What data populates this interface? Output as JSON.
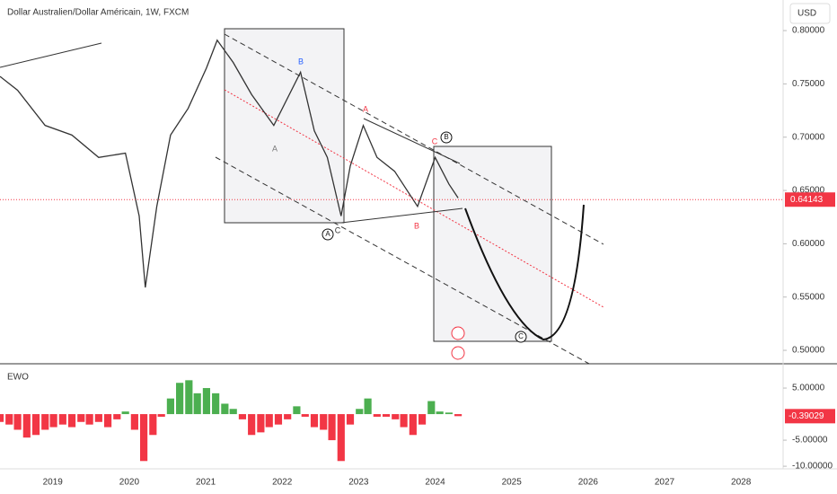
{
  "chart_data": [
    {
      "type": "line",
      "title": "Dollar Australien/Dollar Américain, 1W, FXCM",
      "currency": "USD",
      "color": "#333333",
      "xlim": [
        2018.31,
        2028.55
      ],
      "ylim": [
        0.4874,
        0.8287
      ],
      "yticks": [
        {
          "value": 0.8,
          "label": "0.80000"
        },
        {
          "value": 0.75,
          "label": "0.75000"
        },
        {
          "value": 0.7,
          "label": "0.70000"
        },
        {
          "value": 0.65,
          "label": "0.65000"
        },
        {
          "value": 0.6,
          "label": "0.60000"
        },
        {
          "value": 0.55,
          "label": "0.55000"
        },
        {
          "value": 0.5,
          "label": "0.50000"
        }
      ],
      "x": [
        2018.31,
        2018.54,
        2018.9,
        2019.25,
        2019.6,
        2019.95,
        2020.13,
        2020.21,
        2020.36,
        2020.54,
        2020.77,
        2021.01,
        2021.15,
        2021.36,
        2021.6,
        2021.89,
        2022.24,
        2022.42,
        2022.59,
        2022.77,
        2022.89,
        2023.06,
        2023.24,
        2023.47,
        2023.77,
        2024.0,
        2024.18,
        2024.3
      ],
      "values": [
        0.757,
        0.744,
        0.711,
        0.702,
        0.681,
        0.685,
        0.626,
        0.559,
        0.635,
        0.702,
        0.727,
        0.765,
        0.791,
        0.77,
        0.74,
        0.711,
        0.761,
        0.706,
        0.681,
        0.626,
        0.673,
        0.711,
        0.681,
        0.668,
        0.635,
        0.681,
        0.656,
        0.643
      ],
      "last_price": 0.64143,
      "last_color": "#f23645",
      "annotations": [
        "B",
        "A",
        "C",
        "A",
        "A",
        "C",
        "B",
        "B",
        "C"
      ]
    },
    {
      "type": "bar",
      "title": "EWO",
      "positive_color": "#4caf50",
      "negative_color": "#f23645",
      "xlim": [
        2018.31,
        2028.55
      ],
      "ylim": [
        -10.5,
        9.66
      ],
      "xticks": [
        2019,
        2020,
        2021,
        2022,
        2023,
        2024,
        2025,
        2026,
        2027,
        2028
      ],
      "yticks": [
        {
          "value": 5,
          "label": "5.00000"
        },
        {
          "value": -5,
          "label": "-5.00000"
        },
        {
          "value": -10,
          "label": "-10.00000"
        }
      ],
      "x": [
        2018.31,
        2018.43,
        2018.54,
        2018.66,
        2018.78,
        2018.9,
        2019.01,
        2019.13,
        2019.25,
        2019.37,
        2019.48,
        2019.6,
        2019.72,
        2019.84,
        2019.95,
        2020.07,
        2020.19,
        2020.31,
        2020.42,
        2020.54,
        2020.66,
        2020.78,
        2020.89,
        2021.01,
        2021.13,
        2021.25,
        2021.36,
        2021.48,
        2021.6,
        2021.72,
        2021.83,
        2021.95,
        2022.07,
        2022.19,
        2022.3,
        2022.42,
        2022.54,
        2022.65,
        2022.77,
        2022.89,
        2023.01,
        2023.12,
        2023.24,
        2023.36,
        2023.48,
        2023.59,
        2023.71,
        2023.83,
        2023.95,
        2024.06,
        2024.18,
        2024.3
      ],
      "values": [
        -1.5,
        -2,
        -3,
        -4.5,
        -4,
        -3,
        -2.5,
        -2,
        -2.5,
        -1.5,
        -2,
        -1.5,
        -2.5,
        -1,
        0.5,
        -3,
        -9,
        -4,
        -0.5,
        3,
        6,
        6.5,
        4,
        5,
        4,
        2,
        1,
        -1,
        -4,
        -3.5,
        -2.5,
        -2,
        -1,
        1.5,
        -0.5,
        -2.5,
        -3,
        -5,
        -9,
        -2,
        1,
        3,
        -0.5,
        -0.5,
        -1,
        -2.5,
        -4,
        -2,
        2.5,
        0.5,
        0.3,
        -0.39029
      ],
      "last_value": -0.39029
    }
  ]
}
